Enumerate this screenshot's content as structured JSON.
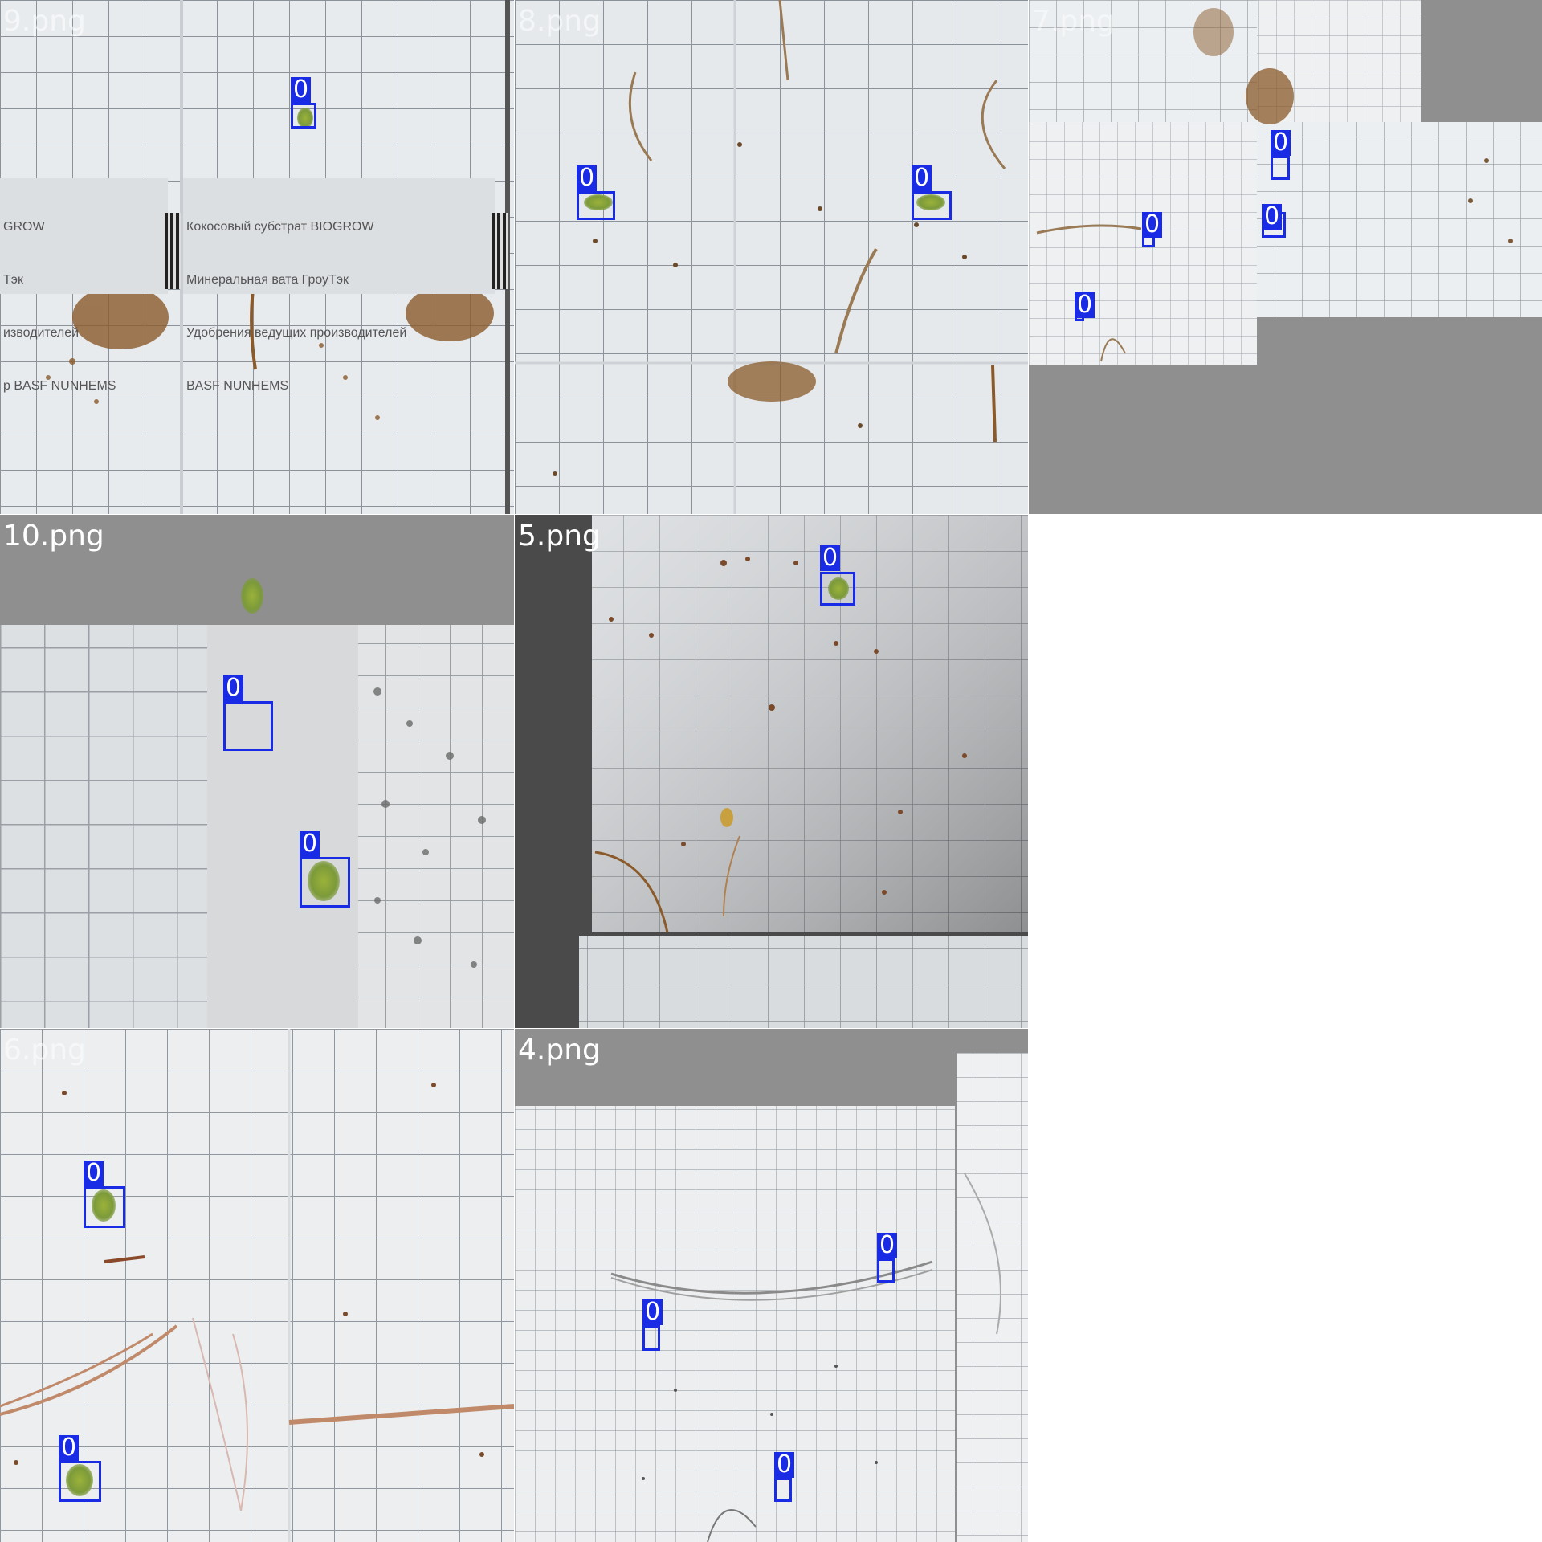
{
  "grid": {
    "tiles": [
      {
        "label": "9.png",
        "detections": [
          "0"
        ]
      },
      {
        "label": "8.png",
        "detections": [
          "0",
          "0"
        ]
      },
      {
        "label": "7.png",
        "detections": [
          "0",
          "0",
          "0",
          "0"
        ]
      },
      {
        "label": "10.png",
        "detections": [
          "0",
          "0"
        ]
      },
      {
        "label": "5.png",
        "detections": [
          "0"
        ]
      },
      {
        "label": "6.png",
        "detections": [
          "0",
          "0"
        ]
      },
      {
        "label": "4.png",
        "detections": [
          "0",
          "0",
          "0"
        ]
      }
    ],
    "product_label_lines": [
      "Кокосовый субстрат BIOGROW",
      "Минеральная вата ГроуТэк",
      "Удобрения ведущих производителей",
      "BASF NUNHEMS"
    ],
    "product_label_crop_lines": [
      "GROW",
      "Тэк",
      "изводителей",
      "р BASF NUNHEMS"
    ]
  },
  "colors": {
    "box": "#1a2be6",
    "paper": "#e9ecef",
    "grid_line": "#8c9299",
    "pad_gray": "#8f8f8f"
  }
}
